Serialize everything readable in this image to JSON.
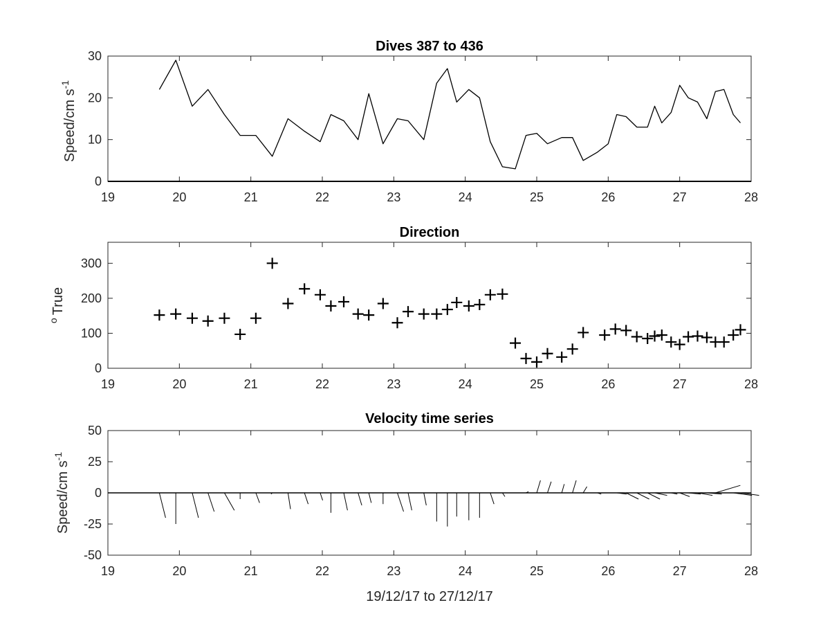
{
  "chart_data": [
    {
      "type": "line",
      "title": "Dives 387 to 436",
      "xlabel": "",
      "ylabel": "Speed/cm s",
      "ylabel_sup": "-1",
      "xlim": [
        19,
        28
      ],
      "ylim": [
        0,
        30
      ],
      "xticks": [
        "19",
        "20",
        "21",
        "22",
        "23",
        "24",
        "25",
        "26",
        "27",
        "28"
      ],
      "yticks": [
        "0",
        "10",
        "20",
        "30"
      ],
      "grid": false,
      "series": [
        {
          "x": [
            19.72,
            19.95,
            20.18,
            20.4,
            20.63,
            20.85,
            21.07,
            21.3,
            21.52,
            21.75,
            21.97,
            22.12,
            22.3,
            22.5,
            22.65,
            22.85,
            23.05,
            23.2,
            23.42,
            23.6,
            23.75,
            23.88,
            24.05,
            24.2,
            24.35,
            24.52,
            24.7,
            24.85,
            25.0,
            25.15,
            25.35,
            25.5,
            25.65,
            25.85,
            26.0,
            26.12,
            26.25,
            26.4,
            26.55,
            26.65,
            26.75,
            26.88,
            27.0,
            27.12,
            27.25,
            27.38,
            27.5,
            27.62,
            27.75,
            27.85
          ],
          "values": [
            22,
            29,
            18,
            22,
            16,
            11,
            11,
            6,
            15,
            12,
            9.5,
            16,
            14.5,
            10,
            21,
            9,
            15,
            14.5,
            10,
            23.5,
            27,
            19,
            22,
            20,
            9.5,
            3.5,
            3,
            11,
            11.5,
            9,
            10.5,
            10.5,
            5,
            7,
            9,
            16,
            15.5,
            13,
            13,
            18,
            14,
            16.5,
            23,
            20,
            19,
            15,
            21.5,
            22,
            16,
            14
          ]
        }
      ]
    },
    {
      "type": "scatter",
      "title": "Direction",
      "xlabel": "",
      "ylabel": "True",
      "ylabel_sup": "o",
      "xlim": [
        19,
        28
      ],
      "ylim": [
        0,
        360
      ],
      "xticks": [
        "19",
        "20",
        "21",
        "22",
        "23",
        "24",
        "25",
        "26",
        "27",
        "28"
      ],
      "yticks": [
        "0",
        "100",
        "200",
        "300"
      ],
      "grid": false,
      "marker": "+",
      "series": [
        {
          "x": [
            19.72,
            19.95,
            20.18,
            20.4,
            20.63,
            20.85,
            21.07,
            21.3,
            21.52,
            21.75,
            21.97,
            22.12,
            22.3,
            22.5,
            22.65,
            22.85,
            23.05,
            23.2,
            23.42,
            23.6,
            23.75,
            23.88,
            24.05,
            24.2,
            24.35,
            24.52,
            24.7,
            24.85,
            25.0,
            25.15,
            25.35,
            25.5,
            25.65,
            25.95,
            26.1,
            26.25,
            26.4,
            26.55,
            26.65,
            26.75,
            26.88,
            27.0,
            27.12,
            27.25,
            27.38,
            27.5,
            27.62,
            27.75,
            27.85
          ],
          "values": [
            152,
            155,
            143,
            135,
            143,
            97,
            143,
            300,
            185,
            227,
            210,
            178,
            190,
            155,
            152,
            185,
            130,
            162,
            155,
            155,
            168,
            188,
            178,
            182,
            210,
            212,
            72,
            28,
            18,
            42,
            32,
            55,
            102,
            95,
            112,
            108,
            90,
            85,
            92,
            95,
            75,
            68,
            90,
            92,
            88,
            75,
            75,
            95,
            110
          ]
        }
      ]
    },
    {
      "type": "line",
      "subtype": "stick-plot",
      "title": "Velocity time series",
      "xlabel": "19/12/17 to 27/12/17",
      "ylabel": "Speed/cm s",
      "ylabel_sup": "-1",
      "xlim": [
        19,
        28
      ],
      "ylim": [
        -50,
        50
      ],
      "xticks": [
        "19",
        "20",
        "21",
        "22",
        "23",
        "24",
        "25",
        "26",
        "27",
        "28"
      ],
      "yticks": [
        "-50",
        "-25",
        "0",
        "25",
        "50"
      ],
      "grid": false,
      "series": [
        {
          "x": [
            19.72,
            19.95,
            20.18,
            20.4,
            20.63,
            20.85,
            21.07,
            21.3,
            21.52,
            21.75,
            21.97,
            22.12,
            22.3,
            22.5,
            22.65,
            22.85,
            23.05,
            23.2,
            23.42,
            23.6,
            23.75,
            23.88,
            24.05,
            24.2,
            24.35,
            24.52,
            24.7,
            24.85,
            25.0,
            25.15,
            25.35,
            25.5,
            25.65,
            25.85,
            26.0,
            26.12,
            26.25,
            26.4,
            26.55,
            26.65,
            26.75,
            26.88,
            27.0,
            27.12,
            27.25,
            27.38,
            27.5,
            27.62,
            27.75,
            27.85
          ],
          "u_east": [
            5,
            0,
            5,
            5,
            8,
            0,
            3,
            -1,
            2,
            3,
            2,
            0,
            3,
            3,
            2,
            0,
            5,
            3,
            2,
            0,
            0,
            0,
            0,
            0,
            3,
            2,
            1,
            2,
            3,
            3,
            2,
            3,
            3,
            3,
            5,
            8,
            10,
            10,
            10,
            10,
            10,
            5,
            8,
            10,
            12,
            12,
            20,
            16,
            15,
            15
          ],
          "v_north": [
            -20,
            -25,
            -20,
            -15,
            -14,
            -5,
            -8,
            -1,
            -13,
            -9,
            -6,
            -16,
            -14,
            -10,
            -8,
            -9,
            -15,
            -14,
            -10,
            -23,
            -27,
            -19,
            -22,
            -20,
            -9,
            -3,
            0,
            1,
            10,
            9,
            7,
            10,
            5,
            -1,
            0,
            -1,
            -5,
            -5,
            -5,
            -2,
            0,
            -1,
            -3,
            -1,
            -2,
            -1,
            6,
            0,
            -2,
            -2
          ]
        }
      ]
    }
  ]
}
